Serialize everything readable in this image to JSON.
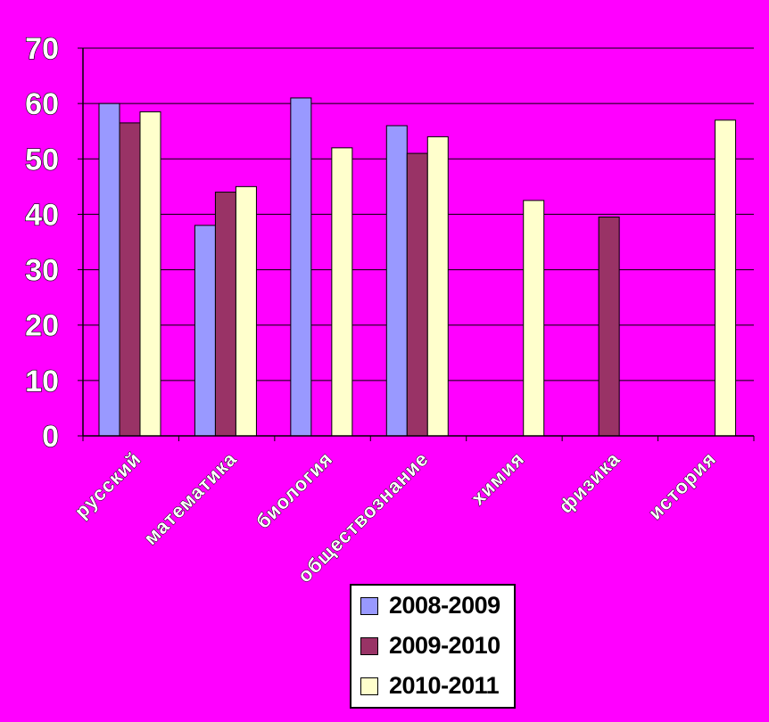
{
  "chart_data": {
    "type": "bar",
    "categories": [
      "русский",
      "математика",
      "биология",
      "обществознание",
      "химия",
      "физика",
      "история"
    ],
    "series": [
      {
        "name": "2008-2009",
        "color": "#9999FF",
        "values": [
          60,
          38,
          61,
          56,
          null,
          null,
          null
        ]
      },
      {
        "name": "2009-2010",
        "color": "#993366",
        "values": [
          56.5,
          44,
          null,
          51,
          null,
          39.5,
          null
        ]
      },
      {
        "name": "2010-2011",
        "color": "#FFFFCC",
        "values": [
          58.5,
          45,
          52,
          54,
          42.5,
          null,
          57
        ]
      }
    ],
    "ylim": [
      0,
      70
    ],
    "yticks": [
      "0",
      "10",
      "20",
      "30",
      "40",
      "50",
      "60",
      "70"
    ],
    "grid": true,
    "legend_position": "bottom-center",
    "background": "#FF00FF"
  }
}
